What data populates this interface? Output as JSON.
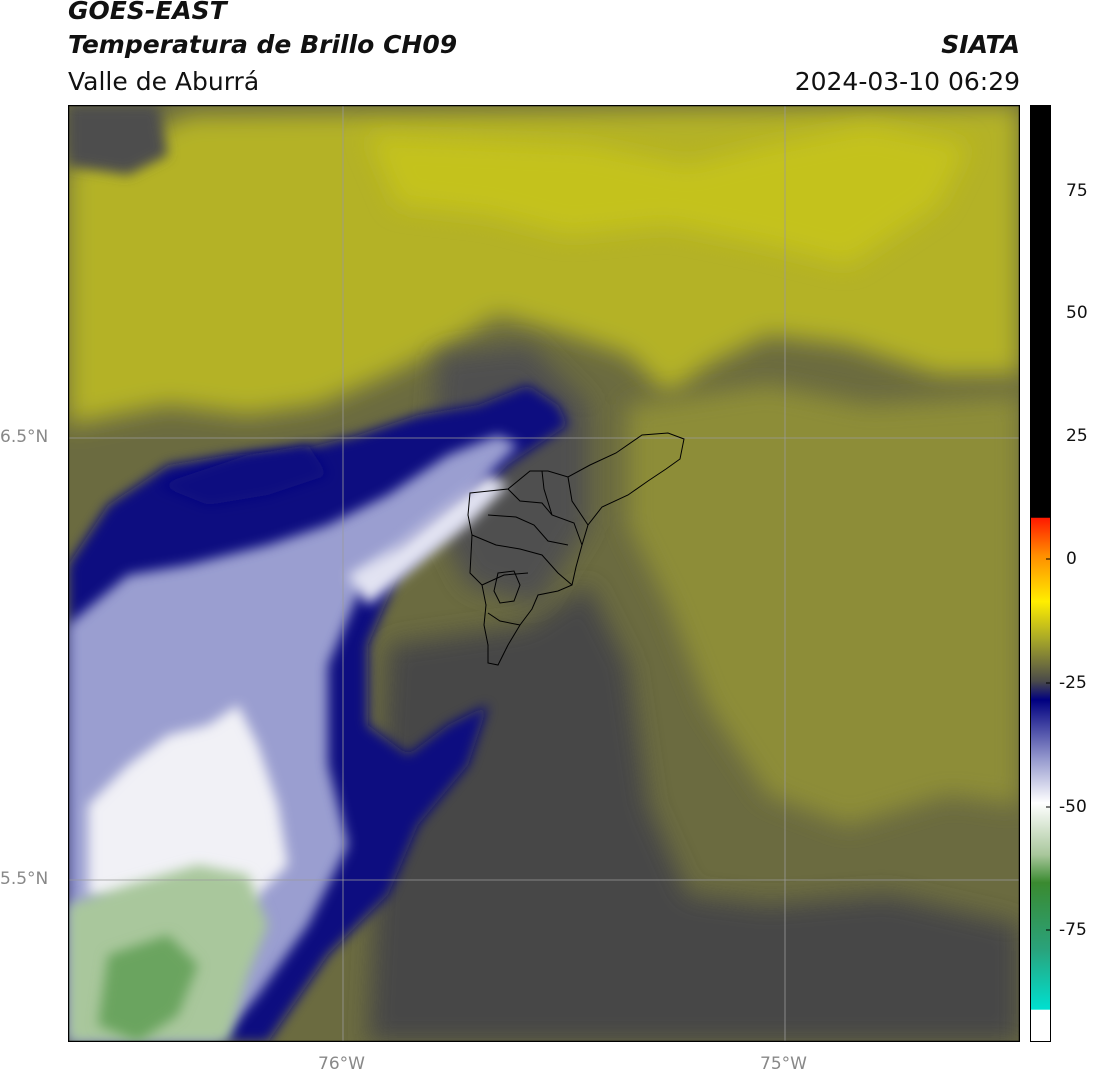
{
  "header": {
    "satellite": "GOES-EAST",
    "product": "Temperatura de Brillo CH09",
    "region": "Valle de Aburrá",
    "brand": "SIATA",
    "datetime": "2024-03-10 06:29"
  },
  "map": {
    "lat_labels": [
      "6.5°N",
      "5.5°N"
    ],
    "lon_labels": [
      "76°W",
      "75°W"
    ]
  },
  "colorbar": {
    "ticks": [
      "75",
      "50",
      "25",
      "0",
      "-25",
      "-50",
      "-75"
    ],
    "colors": {
      "black": "#000000",
      "red": "#ff2a00",
      "orange": "#ff8c00",
      "yellow": "#ffee00",
      "olive": "#a8a828",
      "darkgray": "#4a4a4a",
      "navy": "#000080",
      "lavender": "#a8acd8",
      "white": "#ffffff",
      "green": "#3a8a30",
      "cyan": "#00e0d0"
    }
  }
}
